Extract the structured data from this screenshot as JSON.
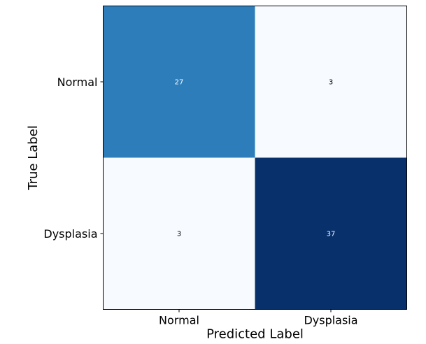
{
  "chart_data": {
    "type": "heatmap",
    "title": "",
    "xlabel": "Predicted Label",
    "ylabel": "True Label",
    "x_categories": [
      "Normal",
      "Dysplasia"
    ],
    "y_categories": [
      "Normal",
      "Dysplasia"
    ],
    "values": [
      [
        27,
        3
      ],
      [
        3,
        37
      ]
    ],
    "colormap": "Blues",
    "color_low": "#f7fbff",
    "color_high": "#08306b",
    "text_color_dark": "#000000",
    "text_color_light": "#ffffff",
    "grid": false
  }
}
